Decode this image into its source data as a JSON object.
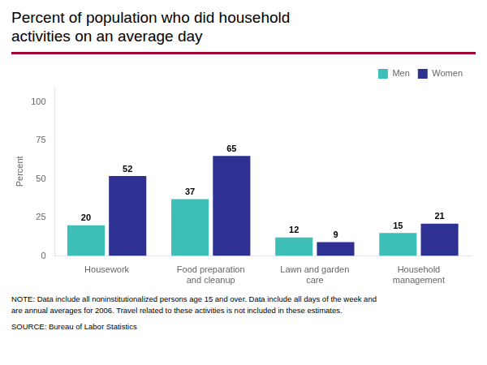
{
  "chart_data": {
    "type": "bar",
    "title": [
      "Percent of population who did household",
      "activities on an average day"
    ],
    "ylabel": "Percent",
    "categories": [
      "Housework",
      "Food preparation\nand cleanup",
      "Lawn and garden\ncare",
      "Household\nmanagement"
    ],
    "series": [
      {
        "name": "Men",
        "color": "#3dbfb8",
        "values": [
          20,
          37,
          12,
          15
        ]
      },
      {
        "name": "Women",
        "color": "#2e3192",
        "values": [
          52,
          65,
          9,
          21
        ]
      }
    ],
    "ylim": [
      0,
      110
    ],
    "yticks": [
      0,
      25,
      50,
      75,
      100
    ],
    "grid": false,
    "legend": "top-right",
    "data_labels": true,
    "separator_color": "#a0003a",
    "annotations": [
      "NOTE: Data include all noninstitutionalized persons age 15 and over. Data include all days of the week and\nare annual averages for 2006. Travel related to these activities is not included in these estimates.",
      "SOURCE: Bureau of Labor Statistics"
    ]
  }
}
